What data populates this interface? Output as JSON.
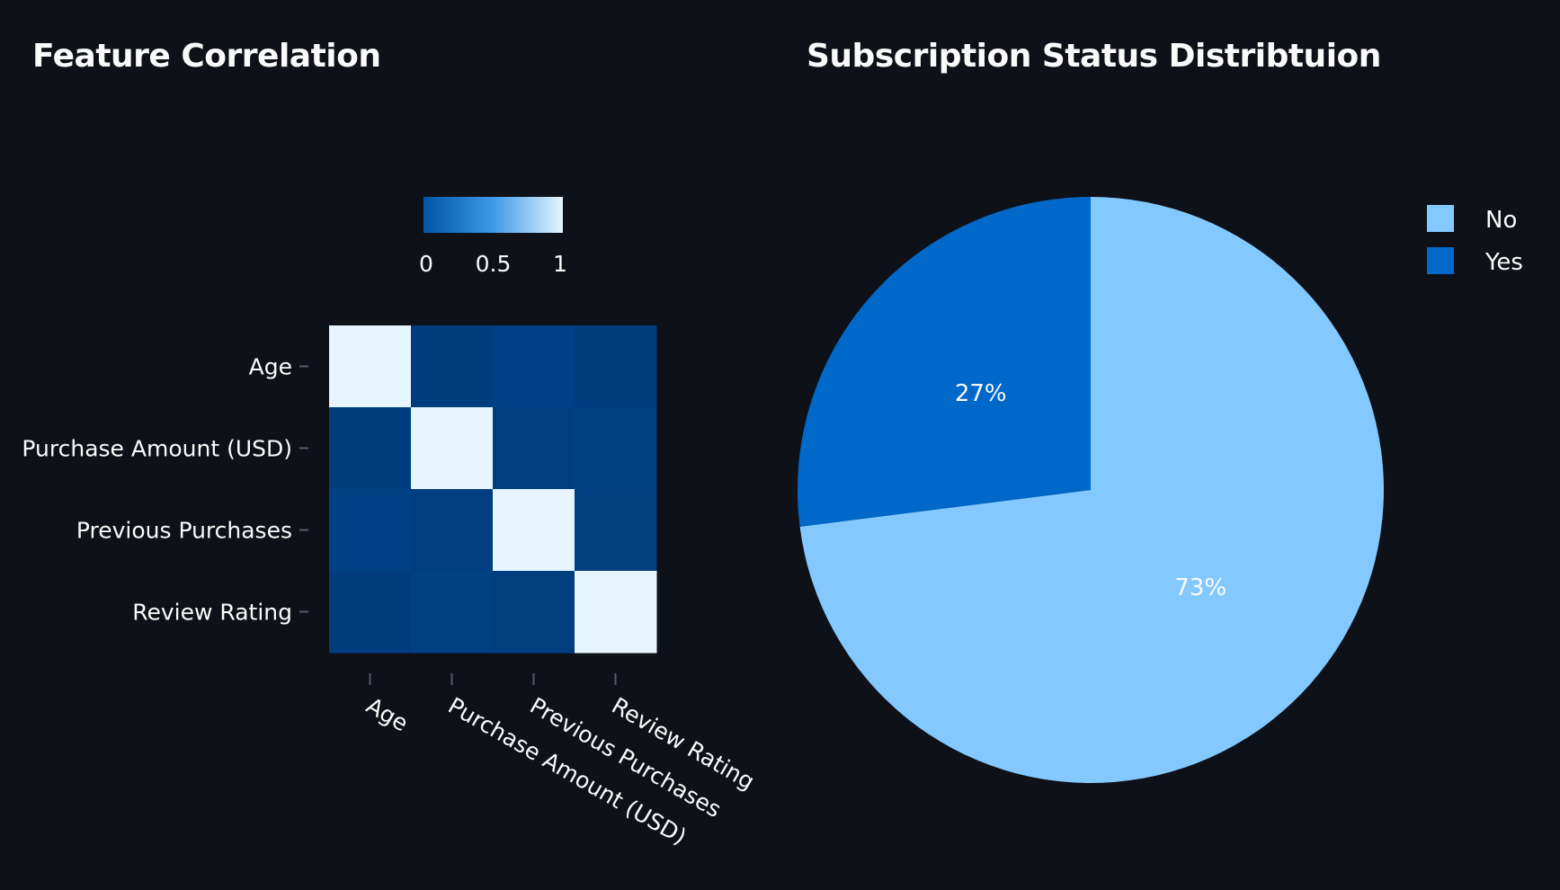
{
  "colors": {
    "background": "#0e1117",
    "text": "#fafafa",
    "scale": [
      "#0054a3",
      "#3d9ae8",
      "#e6f5ff"
    ],
    "pie_no": "#83c9ff",
    "pie_yes": "#0068c9",
    "pie_label_dark": "#3a3f4a"
  },
  "chart_data": [
    {
      "type": "heatmap",
      "title": "Feature Correlation",
      "x": [
        "Age",
        "Purchase Amount (USD)",
        "Previous Purchases",
        "Review Rating"
      ],
      "y": [
        "Age",
        "Purchase Amount (USD)",
        "Previous Purchases",
        "Review Rating"
      ],
      "z": [
        [
          1.0,
          -0.01,
          0.04,
          -0.02
        ],
        [
          -0.01,
          1.0,
          0.01,
          0.03
        ],
        [
          0.04,
          0.01,
          1.0,
          0.0
        ],
        [
          -0.02,
          0.03,
          0.0,
          1.0
        ]
      ],
      "colorbar": {
        "range": [
          0,
          1
        ],
        "ticks": [
          "0",
          "0.5",
          "1"
        ],
        "position": "top"
      },
      "zlim": [
        -0.05,
        1.0
      ]
    },
    {
      "type": "pie",
      "title": "Subscription Status Distribtuion",
      "labels": [
        "No",
        "Yes"
      ],
      "values": [
        73,
        27
      ],
      "text": [
        "73%",
        "27%"
      ],
      "legend": "top-right"
    }
  ]
}
